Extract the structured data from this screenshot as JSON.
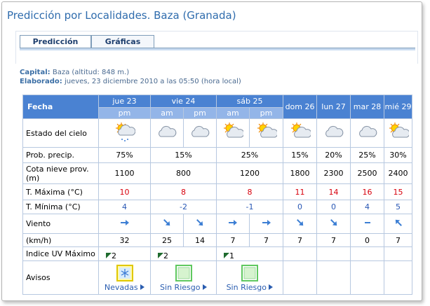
{
  "header": {
    "title": "Predicción por Localidades. Baza (Granada)"
  },
  "tabs": [
    "Predicción",
    "Gráficas"
  ],
  "info": {
    "capital_label": "Capital:",
    "capital": "Baza (altitud: 848 m.)",
    "elaborado_label": "Elaborado:",
    "elaborado": "jueves, 23 diciembre 2010 a las 05:50 (hora local)"
  },
  "table": {
    "corner": "Fecha",
    "days": [
      {
        "name": "jue 23",
        "periods": [
          "pm"
        ]
      },
      {
        "name": "vie 24",
        "periods": [
          "am",
          "pm"
        ]
      },
      {
        "name": "sáb 25",
        "periods": [
          "am",
          "pm"
        ]
      },
      {
        "name": "dom 26",
        "periods": []
      },
      {
        "name": "lun 27",
        "periods": []
      },
      {
        "name": "mar 28",
        "periods": []
      },
      {
        "name": "mié 29",
        "periods": []
      }
    ],
    "rows": [
      {
        "label": "Estado del cielo"
      },
      {
        "label": "Prob. precip.",
        "cells": [
          "75%",
          "15%",
          "25%",
          "15%",
          "20%",
          "25%",
          "30%"
        ]
      },
      {
        "label": "Cota nieve prov.(m)",
        "cells": [
          "1100",
          "800",
          "1200",
          "1800",
          "2300",
          "2500",
          "2400"
        ]
      },
      {
        "label": "T. Máxima (°C)",
        "cells": [
          "10",
          "8",
          "8",
          "11",
          "14",
          "16",
          "15"
        ]
      },
      {
        "label": "T. Mínima (°C)",
        "cells": [
          "4",
          "-2",
          "-1",
          "0",
          "0",
          "4",
          "5"
        ]
      },
      {
        "label": "Viento"
      },
      {
        "label": "(km/h)",
        "cells": [
          "32",
          "25",
          "14",
          "7",
          "7",
          "7",
          "7",
          "0",
          "7"
        ]
      },
      {
        "label": "Indice UV Máximo",
        "cells": [
          "2",
          "2",
          "1",
          null,
          null,
          null,
          null
        ]
      },
      {
        "label": "Avisos",
        "cells": [
          "Nevadas",
          "Sin Riesgo",
          "Sin Riesgo",
          null,
          null,
          null,
          null
        ]
      }
    ]
  }
}
